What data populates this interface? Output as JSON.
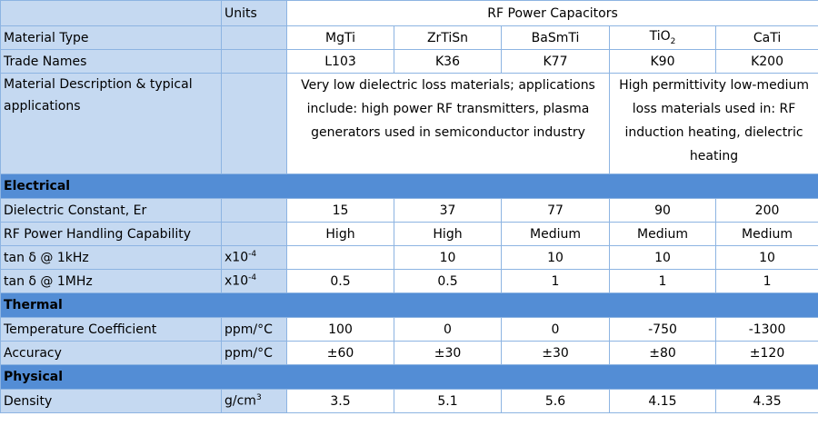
{
  "header": {
    "units_label": "Units",
    "group_label": "RF Power Capacitors"
  },
  "rows": {
    "material_type": {
      "label": "Material Type",
      "units": "",
      "values": [
        "MgTi",
        "ZrTiSn",
        "BaSmTi",
        "TiO",
        "CaTi"
      ],
      "tio2_sub": "2"
    },
    "trade_names": {
      "label": "Trade Names",
      "units": "",
      "values": [
        "L103",
        "K36",
        "K77",
        "K90",
        "K200"
      ]
    },
    "description": {
      "label": "Material Description & typical applications",
      "group1": "Very low dielectric loss materials; applications include: high power RF transmitters, plasma generators used in semiconductor industry",
      "group2": "High permittivity low-medium loss materials used in: RF induction heating, dielectric heating"
    }
  },
  "sections": {
    "electrical": "Electrical",
    "thermal": "Thermal",
    "physical": "Physical"
  },
  "electrical": {
    "dielectric_constant": {
      "label": "Dielectric Constant, Er",
      "units": "",
      "values": [
        "15",
        "37",
        "77",
        "90",
        "200"
      ]
    },
    "rf_power": {
      "label": "RF Power Handling Capability",
      "units": "",
      "values": [
        "High",
        "High",
        "Medium",
        "Medium",
        "Medium"
      ]
    },
    "tan_1khz": {
      "label": "tan δ @ 1kHz",
      "units_base": "x10",
      "units_exp": "-4",
      "values": [
        "",
        "10",
        "10",
        "10",
        "10"
      ]
    },
    "tan_1mhz": {
      "label": "tan δ @ 1MHz",
      "units_base": "x10",
      "units_exp": "-4",
      "values": [
        "0.5",
        "0.5",
        "1",
        "1",
        "1"
      ]
    }
  },
  "thermal": {
    "temp_coeff": {
      "label": "Temperature Coefficient",
      "units": "ppm/°C",
      "values": [
        "100",
        "0",
        "0",
        "-750",
        "-1300"
      ]
    },
    "accuracy": {
      "label": "Accuracy",
      "units": "ppm/°C",
      "values": [
        "±60",
        "±30",
        "±30",
        "±80",
        "±120"
      ]
    }
  },
  "physical": {
    "density": {
      "label": "Density",
      "units_base": "g/cm",
      "units_exp": "3",
      "values": [
        "3.5",
        "5.1",
        "5.6",
        "4.15",
        "4.35"
      ]
    }
  }
}
